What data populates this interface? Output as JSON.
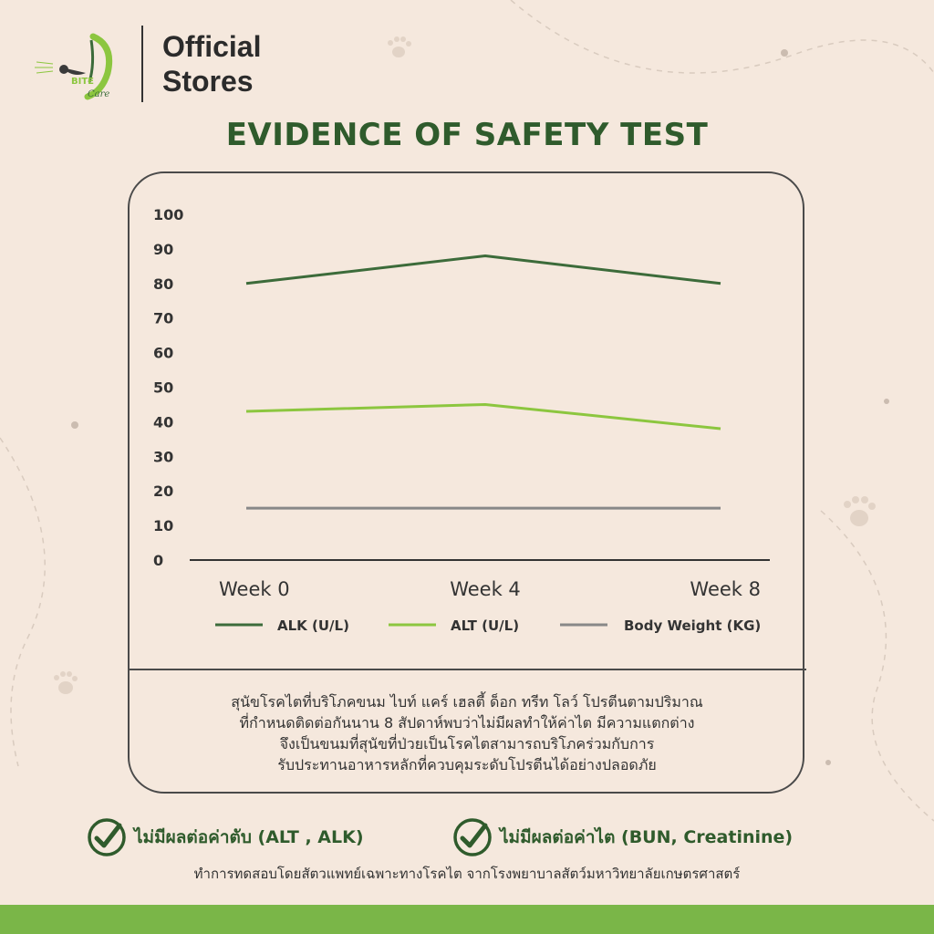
{
  "brand": {
    "logo_text": "BITE",
    "logo_subtext": "Care",
    "store_line1": "Official",
    "store_line2": "Stores"
  },
  "title": "EVIDENCE OF SAFETY TEST",
  "colors": {
    "background": "#f5e8dd",
    "alk": "#3c6b3a",
    "alt": "#8cc63f",
    "body_weight": "#888888",
    "title": "#2f5b2c",
    "bottom_bar": "#7ab648"
  },
  "chart_data": {
    "type": "line",
    "categories": [
      "Week 0",
      "Week 4",
      "Week 8"
    ],
    "ylim": [
      0,
      100
    ],
    "yticks": [
      0,
      10,
      20,
      30,
      40,
      50,
      60,
      70,
      80,
      90,
      100
    ],
    "grid": false,
    "legend_position": "bottom",
    "series": [
      {
        "name": "ALK (U/L)",
        "values": [
          80,
          88,
          80
        ],
        "color": "#3c6b3a"
      },
      {
        "name": "ALT (U/L)",
        "values": [
          43,
          45,
          38
        ],
        "color": "#8cc63f"
      },
      {
        "name": "Body Weight (KG)",
        "values": [
          15,
          15,
          15
        ],
        "color": "#888888"
      }
    ]
  },
  "description": {
    "line1": "สุนัขโรคไตที่บริโภคขนม ไบท์ แคร์ เฮลตี้ ด็อก ทรีท โลว์ โปรตีนตามปริมาณ",
    "line2": "ที่กำหนดติดต่อกันนาน 8 สัปดาห์พบว่าไม่มีผลทำให้ค่าไต มีความแตกต่าง",
    "line3": "จึงเป็นขนมที่สุนัขที่ป่วยเป็นโรคไตสามารถบริโภคร่วมกับการ",
    "line4": "รับประทานอาหารหลักที่ควบคุมระดับโปรตีนได้อย่างปลอดภัย"
  },
  "claims": {
    "liver": "ไม่มีผลต่อค่าตับ (ALT , ALK)",
    "kidney": "ไม่มีผลต่อค่าไต (BUN, Creatinine)"
  },
  "footnote": "ทำการทดสอบโดยสัตวแพทย์เฉพาะทางโรคไต จากโรงพยาบาลสัตว์มหาวิทยาลัยเกษตรศาสตร์"
}
